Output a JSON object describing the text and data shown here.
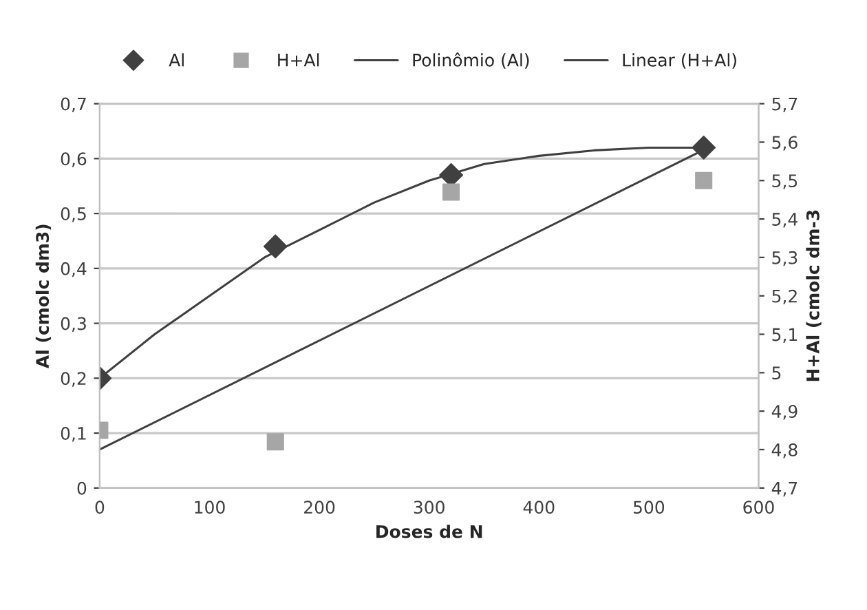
{
  "chart_data": {
    "type": "scatter",
    "xlabel": "Doses de N",
    "ylabel": "Al (cmolc dm3)",
    "y2label": "H+Al (cmolc dm-3",
    "legend": "top",
    "grid": "y",
    "series": [
      {
        "name": "Al",
        "marker": "diamond",
        "color": "#404040",
        "x": [
          0,
          160,
          320,
          550
        ],
        "values": [
          0.2,
          0.44,
          0.57,
          0.62
        ]
      },
      {
        "name": "H+Al",
        "marker": "square",
        "color": "#a6a6a6",
        "axis": "y2",
        "x": [
          0,
          160,
          320,
          550
        ],
        "values": [
          4.85,
          4.82,
          5.47,
          5.5
        ]
      },
      {
        "name": "Polinômio (Al)",
        "type": "line",
        "color": "#404040",
        "x": [
          0,
          50,
          100,
          150,
          200,
          250,
          300,
          350,
          400,
          450,
          500,
          550
        ],
        "values": [
          0.2,
          0.28,
          0.35,
          0.42,
          0.47,
          0.52,
          0.56,
          0.59,
          0.605,
          0.615,
          0.62,
          0.62
        ]
      },
      {
        "name": "Linear (H+Al)",
        "type": "line",
        "color": "#404040",
        "axis": "y2",
        "x": [
          0,
          550
        ],
        "values": [
          4.8,
          5.58
        ]
      }
    ],
    "xlim": [
      0,
      600
    ],
    "xticks": [
      0,
      100,
      200,
      300,
      400,
      500,
      600
    ],
    "ylim": [
      0,
      0.7
    ],
    "yticks": [
      {
        "value": 0,
        "label": "0"
      },
      {
        "value": 0.1,
        "label": "0,1"
      },
      {
        "value": 0.2,
        "label": "0,2"
      },
      {
        "value": 0.3,
        "label": "0,3"
      },
      {
        "value": 0.4,
        "label": "0,4"
      },
      {
        "value": 0.5,
        "label": "0,5"
      },
      {
        "value": 0.6,
        "label": "0,6"
      },
      {
        "value": 0.7,
        "label": "0,7"
      }
    ],
    "y2lim": [
      4.7,
      5.7
    ],
    "y2ticks": [
      {
        "value": 4.7,
        "label": "4,7"
      },
      {
        "value": 4.8,
        "label": "4,8"
      },
      {
        "value": 4.9,
        "label": "4,9"
      },
      {
        "value": 5,
        "label": "5"
      },
      {
        "value": 5.1,
        "label": "5,1"
      },
      {
        "value": 5.2,
        "label": "5,2"
      },
      {
        "value": 5.3,
        "label": "5,3"
      },
      {
        "value": 5.4,
        "label": "5,4"
      },
      {
        "value": 5.5,
        "label": "5,5"
      },
      {
        "value": 5.6,
        "label": "5,6"
      },
      {
        "value": 5.7,
        "label": "5,7"
      }
    ]
  }
}
